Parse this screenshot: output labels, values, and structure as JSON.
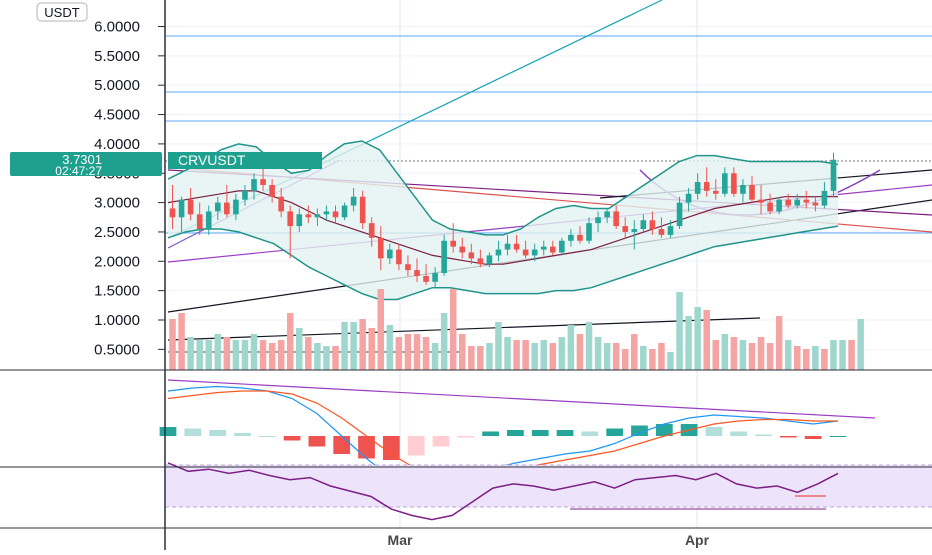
{
  "chart_data": [
    {
      "type": "candlestick",
      "symbol": "CRVUSDT",
      "currency_label": "USDT",
      "current_price": "3.7301",
      "countdown": "02:47:27",
      "x_ticks": [
        "Mar",
        "Apr"
      ],
      "y_ticks": [
        "6.0000",
        "5.5000",
        "5.0000",
        "4.5000",
        "4.0000",
        "3.5000",
        "3.0000",
        "2.5000",
        "2.0000",
        "1.5000",
        "1.0000",
        "0.5000"
      ],
      "ylim": [
        0,
        6.4
      ],
      "grid": true,
      "colors": {
        "up": "#26a69a",
        "down": "#ef5350",
        "bb_line": "#20948b",
        "bb_fill": "#e3f3f1",
        "ma": "#7b1f3d",
        "rsi": "#7e1f86",
        "rsi_band": "#ede3fa",
        "macd": "#2196f3",
        "signal": "#ff5722"
      },
      "candles": [
        {
          "o": 2.9,
          "h": 3.3,
          "l": 2.55,
          "c": 2.75
        },
        {
          "o": 2.75,
          "h": 3.1,
          "l": 2.5,
          "c": 3.05
        },
        {
          "o": 3.05,
          "h": 3.25,
          "l": 2.7,
          "c": 2.8
        },
        {
          "o": 2.8,
          "h": 3.0,
          "l": 2.45,
          "c": 2.55
        },
        {
          "o": 2.55,
          "h": 2.95,
          "l": 2.45,
          "c": 2.85
        },
        {
          "o": 2.85,
          "h": 3.1,
          "l": 2.7,
          "c": 3.0
        },
        {
          "o": 3.0,
          "h": 3.3,
          "l": 2.75,
          "c": 2.8
        },
        {
          "o": 2.8,
          "h": 3.15,
          "l": 2.7,
          "c": 3.05
        },
        {
          "o": 3.05,
          "h": 3.3,
          "l": 2.95,
          "c": 3.2
        },
        {
          "o": 3.2,
          "h": 3.5,
          "l": 3.05,
          "c": 3.4
        },
        {
          "o": 3.4,
          "h": 3.6,
          "l": 3.2,
          "c": 3.3
        },
        {
          "o": 3.3,
          "h": 3.4,
          "l": 3.0,
          "c": 3.1
        },
        {
          "o": 3.1,
          "h": 3.25,
          "l": 2.75,
          "c": 2.85
        },
        {
          "o": 2.85,
          "h": 2.95,
          "l": 2.05,
          "c": 2.6
        },
        {
          "o": 2.6,
          "h": 2.9,
          "l": 2.5,
          "c": 2.8
        },
        {
          "o": 2.8,
          "h": 2.95,
          "l": 2.65,
          "c": 2.75
        },
        {
          "o": 2.75,
          "h": 2.9,
          "l": 2.6,
          "c": 2.8
        },
        {
          "o": 2.8,
          "h": 2.95,
          "l": 2.7,
          "c": 2.85
        },
        {
          "o": 2.85,
          "h": 2.95,
          "l": 2.65,
          "c": 2.75
        },
        {
          "o": 2.75,
          "h": 3.0,
          "l": 2.7,
          "c": 2.95
        },
        {
          "o": 2.95,
          "h": 3.25,
          "l": 2.85,
          "c": 3.1
        },
        {
          "o": 3.1,
          "h": 3.2,
          "l": 2.55,
          "c": 2.65
        },
        {
          "o": 2.65,
          "h": 2.75,
          "l": 2.25,
          "c": 2.4
        },
        {
          "o": 2.4,
          "h": 2.6,
          "l": 1.85,
          "c": 2.05
        },
        {
          "o": 2.05,
          "h": 2.3,
          "l": 1.95,
          "c": 2.2
        },
        {
          "o": 2.2,
          "h": 2.3,
          "l": 1.85,
          "c": 1.95
        },
        {
          "o": 1.95,
          "h": 2.1,
          "l": 1.75,
          "c": 1.85
        },
        {
          "o": 1.85,
          "h": 2.05,
          "l": 1.65,
          "c": 1.75
        },
        {
          "o": 1.75,
          "h": 1.95,
          "l": 1.6,
          "c": 1.65
        },
        {
          "o": 1.65,
          "h": 1.9,
          "l": 1.55,
          "c": 1.8
        },
        {
          "o": 1.8,
          "h": 2.45,
          "l": 1.75,
          "c": 2.35
        },
        {
          "o": 2.35,
          "h": 2.65,
          "l": 2.15,
          "c": 2.25
        },
        {
          "o": 2.25,
          "h": 2.4,
          "l": 2.05,
          "c": 2.15
        },
        {
          "o": 2.15,
          "h": 2.3,
          "l": 1.95,
          "c": 2.05
        },
        {
          "o": 2.05,
          "h": 2.2,
          "l": 1.9,
          "c": 1.95
        },
        {
          "o": 1.95,
          "h": 2.15,
          "l": 1.9,
          "c": 2.1
        },
        {
          "o": 2.1,
          "h": 2.35,
          "l": 2.0,
          "c": 2.2
        },
        {
          "o": 2.2,
          "h": 2.45,
          "l": 2.1,
          "c": 2.3
        },
        {
          "o": 2.3,
          "h": 2.45,
          "l": 2.15,
          "c": 2.2
        },
        {
          "o": 2.2,
          "h": 2.35,
          "l": 2.05,
          "c": 2.1
        },
        {
          "o": 2.1,
          "h": 2.3,
          "l": 2.0,
          "c": 2.2
        },
        {
          "o": 2.2,
          "h": 2.35,
          "l": 2.1,
          "c": 2.25
        },
        {
          "o": 2.25,
          "h": 2.35,
          "l": 2.1,
          "c": 2.15
        },
        {
          "o": 2.15,
          "h": 2.4,
          "l": 2.1,
          "c": 2.35
        },
        {
          "o": 2.35,
          "h": 2.55,
          "l": 2.25,
          "c": 2.45
        },
        {
          "o": 2.45,
          "h": 2.6,
          "l": 2.3,
          "c": 2.35
        },
        {
          "o": 2.35,
          "h": 2.75,
          "l": 2.3,
          "c": 2.65
        },
        {
          "o": 2.65,
          "h": 2.85,
          "l": 2.5,
          "c": 2.75
        },
        {
          "o": 2.75,
          "h": 2.9,
          "l": 2.65,
          "c": 2.85
        },
        {
          "o": 2.85,
          "h": 2.95,
          "l": 2.55,
          "c": 2.6
        },
        {
          "o": 2.6,
          "h": 2.75,
          "l": 2.4,
          "c": 2.5
        },
        {
          "o": 2.5,
          "h": 2.7,
          "l": 2.2,
          "c": 2.55
        },
        {
          "o": 2.55,
          "h": 2.8,
          "l": 2.5,
          "c": 2.7
        },
        {
          "o": 2.7,
          "h": 2.85,
          "l": 2.45,
          "c": 2.55
        },
        {
          "o": 2.55,
          "h": 2.75,
          "l": 2.4,
          "c": 2.45
        },
        {
          "o": 2.45,
          "h": 2.7,
          "l": 2.4,
          "c": 2.6
        },
        {
          "o": 2.6,
          "h": 3.1,
          "l": 2.55,
          "c": 3.0
        },
        {
          "o": 3.0,
          "h": 3.25,
          "l": 2.85,
          "c": 3.15
        },
        {
          "o": 3.15,
          "h": 3.5,
          "l": 3.05,
          "c": 3.35
        },
        {
          "o": 3.35,
          "h": 3.6,
          "l": 3.1,
          "c": 3.2
        },
        {
          "o": 3.2,
          "h": 3.4,
          "l": 3.05,
          "c": 3.15
        },
        {
          "o": 3.15,
          "h": 3.6,
          "l": 3.1,
          "c": 3.5
        },
        {
          "o": 3.5,
          "h": 3.6,
          "l": 3.1,
          "c": 3.15
        },
        {
          "o": 3.15,
          "h": 3.4,
          "l": 3.0,
          "c": 3.3
        },
        {
          "o": 3.3,
          "h": 3.45,
          "l": 3.0,
          "c": 3.05
        },
        {
          "o": 3.05,
          "h": 3.3,
          "l": 2.8,
          "c": 3.0
        },
        {
          "o": 3.0,
          "h": 3.15,
          "l": 2.8,
          "c": 2.85
        },
        {
          "o": 2.85,
          "h": 3.1,
          "l": 2.8,
          "c": 3.05
        },
        {
          "o": 3.05,
          "h": 3.15,
          "l": 2.9,
          "c": 2.95
        },
        {
          "o": 2.95,
          "h": 3.15,
          "l": 2.9,
          "c": 3.05
        },
        {
          "o": 3.05,
          "h": 3.2,
          "l": 2.9,
          "c": 3.0
        },
        {
          "o": 3.0,
          "h": 3.1,
          "l": 2.85,
          "c": 2.95
        },
        {
          "o": 2.95,
          "h": 3.35,
          "l": 2.9,
          "c": 3.2
        },
        {
          "o": 3.2,
          "h": 3.85,
          "l": 3.1,
          "c": 3.73
        }
      ],
      "volume": [
        {
          "v": 0.85,
          "up": false
        },
        {
          "v": 0.95,
          "up": false
        },
        {
          "v": 0.55,
          "up": true
        },
        {
          "v": 0.5,
          "up": true
        },
        {
          "v": 0.5,
          "up": true
        },
        {
          "v": 0.6,
          "up": true
        },
        {
          "v": 0.55,
          "up": false
        },
        {
          "v": 0.5,
          "up": true
        },
        {
          "v": 0.5,
          "up": true
        },
        {
          "v": 0.6,
          "up": true
        },
        {
          "v": 0.5,
          "up": false
        },
        {
          "v": 0.45,
          "up": false
        },
        {
          "v": 0.5,
          "up": false
        },
        {
          "v": 0.95,
          "up": false
        },
        {
          "v": 0.7,
          "up": true
        },
        {
          "v": 0.55,
          "up": false
        },
        {
          "v": 0.45,
          "up": true
        },
        {
          "v": 0.4,
          "up": true
        },
        {
          "v": 0.4,
          "up": false
        },
        {
          "v": 0.8,
          "up": true
        },
        {
          "v": 0.8,
          "up": true
        },
        {
          "v": 0.85,
          "up": false
        },
        {
          "v": 0.7,
          "up": false
        },
        {
          "v": 1.35,
          "up": false
        },
        {
          "v": 0.75,
          "up": true
        },
        {
          "v": 0.55,
          "up": false
        },
        {
          "v": 0.6,
          "up": false
        },
        {
          "v": 0.6,
          "up": false
        },
        {
          "v": 0.55,
          "up": false
        },
        {
          "v": 0.45,
          "up": true
        },
        {
          "v": 0.95,
          "up": true
        },
        {
          "v": 1.35,
          "up": false
        },
        {
          "v": 0.6,
          "up": false
        },
        {
          "v": 0.4,
          "up": false
        },
        {
          "v": 0.4,
          "up": false
        },
        {
          "v": 0.45,
          "up": true
        },
        {
          "v": 0.8,
          "up": true
        },
        {
          "v": 0.55,
          "up": true
        },
        {
          "v": 0.5,
          "up": false
        },
        {
          "v": 0.5,
          "up": false
        },
        {
          "v": 0.45,
          "up": true
        },
        {
          "v": 0.5,
          "up": true
        },
        {
          "v": 0.45,
          "up": false
        },
        {
          "v": 0.55,
          "up": true
        },
        {
          "v": 0.75,
          "up": true
        },
        {
          "v": 0.6,
          "up": false
        },
        {
          "v": 0.8,
          "up": true
        },
        {
          "v": 0.55,
          "up": true
        },
        {
          "v": 0.45,
          "up": true
        },
        {
          "v": 0.45,
          "up": false
        },
        {
          "v": 0.35,
          "up": false
        },
        {
          "v": 0.6,
          "up": false
        },
        {
          "v": 0.4,
          "up": true
        },
        {
          "v": 0.35,
          "up": false
        },
        {
          "v": 0.45,
          "up": false
        },
        {
          "v": 0.3,
          "up": true
        },
        {
          "v": 1.3,
          "up": true
        },
        {
          "v": 0.9,
          "up": true
        },
        {
          "v": 1.05,
          "up": true
        },
        {
          "v": 1.0,
          "up": false
        },
        {
          "v": 0.5,
          "up": false
        },
        {
          "v": 0.6,
          "up": true
        },
        {
          "v": 0.55,
          "up": false
        },
        {
          "v": 0.5,
          "up": true
        },
        {
          "v": 0.45,
          "up": false
        },
        {
          "v": 0.55,
          "up": false
        },
        {
          "v": 0.45,
          "up": false
        },
        {
          "v": 0.9,
          "up": false
        },
        {
          "v": 0.5,
          "up": true
        },
        {
          "v": 0.4,
          "up": false
        },
        {
          "v": 0.35,
          "up": false
        },
        {
          "v": 0.4,
          "up": true
        },
        {
          "v": 0.35,
          "up": false
        },
        {
          "v": 0.5,
          "up": true
        },
        {
          "v": 0.5,
          "up": true
        },
        {
          "v": 0.5,
          "up": false
        },
        {
          "v": 0.85,
          "up": true
        }
      ],
      "bollinger": {
        "basis": [
          3.0,
          3.05,
          3.1,
          3.15,
          3.2,
          3.2,
          3.1,
          3.0,
          2.85,
          2.7,
          2.6,
          2.5,
          2.4,
          2.3,
          2.2,
          2.1,
          2.05,
          2.0,
          1.95,
          1.95,
          2.0,
          2.05,
          2.1,
          2.15,
          2.2,
          2.3,
          2.4,
          2.5,
          2.6,
          2.7,
          2.8,
          2.9,
          2.95,
          3.0,
          3.05,
          3.1,
          3.1,
          3.1,
          3.1
        ],
        "upper": [
          3.4,
          3.55,
          3.7,
          3.9,
          4.0,
          3.95,
          3.7,
          3.5,
          3.55,
          3.8,
          4.0,
          4.05,
          3.9,
          3.5,
          3.1,
          2.7,
          2.55,
          2.5,
          2.45,
          2.45,
          2.55,
          2.75,
          2.9,
          2.95,
          2.9,
          2.9,
          3.1,
          3.3,
          3.5,
          3.7,
          3.8,
          3.8,
          3.75,
          3.7,
          3.7,
          3.7,
          3.7,
          3.7,
          3.65
        ],
        "lower": [
          2.4,
          2.5,
          2.55,
          2.55,
          2.5,
          2.4,
          2.3,
          2.1,
          1.9,
          1.75,
          1.6,
          1.45,
          1.35,
          1.35,
          1.45,
          1.55,
          1.55,
          1.5,
          1.45,
          1.45,
          1.45,
          1.45,
          1.5,
          1.5,
          1.55,
          1.65,
          1.75,
          1.85,
          1.95,
          2.05,
          2.15,
          2.25,
          2.3,
          2.35,
          2.4,
          2.45,
          2.5,
          2.55,
          2.6
        ]
      },
      "macd": {
        "macd": [
          0.3,
          0.32,
          0.33,
          0.32,
          0.3,
          0.25,
          0.15,
          0.0,
          -0.15,
          -0.28,
          -0.35,
          -0.33,
          -0.28,
          -0.22,
          -0.18,
          -0.15,
          -0.12,
          -0.1,
          -0.05,
          0.02,
          0.08,
          0.12,
          0.14,
          0.13,
          0.12,
          0.1,
          0.08,
          0.1
        ],
        "signal": [
          0.25,
          0.27,
          0.29,
          0.3,
          0.3,
          0.28,
          0.22,
          0.12,
          0.0,
          -0.12,
          -0.22,
          -0.26,
          -0.27,
          -0.25,
          -0.22,
          -0.19,
          -0.16,
          -0.13,
          -0.1,
          -0.05,
          0.0,
          0.04,
          0.08,
          0.1,
          0.11,
          0.11,
          0.1,
          0.1
        ],
        "hist": [
          0.06,
          0.05,
          0.04,
          0.02,
          0.0,
          -0.03,
          -0.07,
          -0.12,
          -0.15,
          -0.16,
          -0.13,
          -0.07,
          -0.01,
          0.03,
          0.04,
          0.04,
          0.04,
          0.03,
          0.05,
          0.07,
          0.08,
          0.08,
          0.06,
          0.03,
          0.01,
          -0.01,
          -0.02,
          0.0
        ]
      },
      "rsi": [
        72,
        64,
        66,
        62,
        65,
        60,
        56,
        58,
        50,
        45,
        40,
        28,
        22,
        18,
        22,
        35,
        48,
        52,
        50,
        46,
        50,
        54,
        48,
        56,
        58,
        60,
        56,
        62,
        52,
        48,
        50,
        44,
        52,
        62
      ]
    }
  ]
}
